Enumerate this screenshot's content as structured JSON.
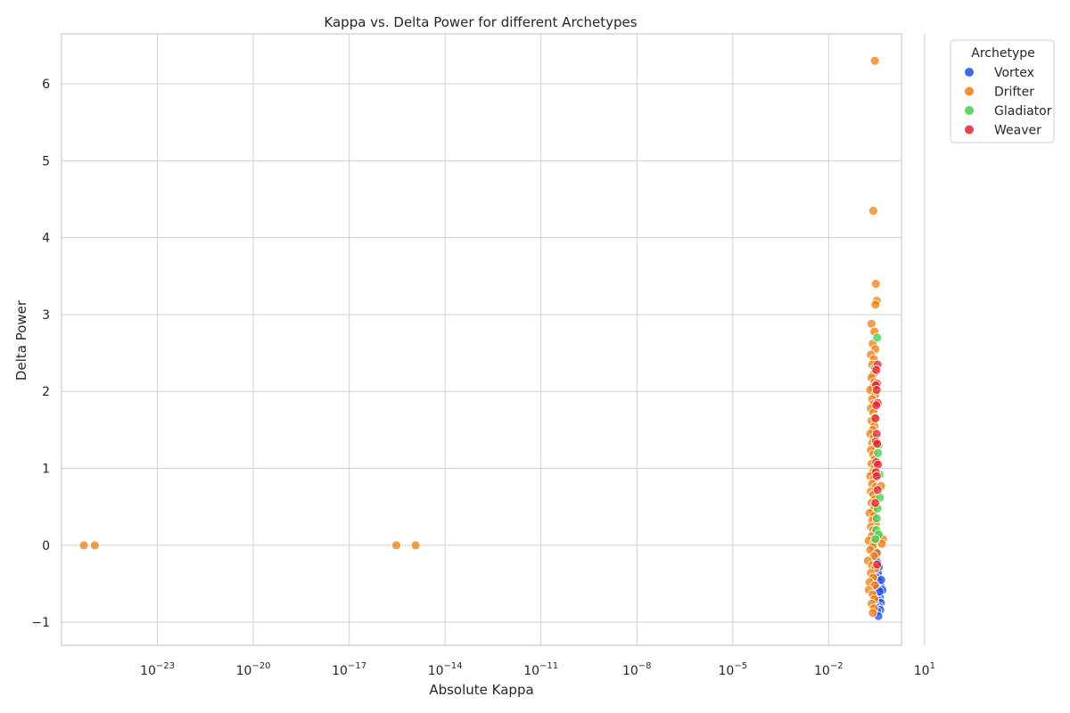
{
  "chart_data": {
    "type": "scatter",
    "title": "Kappa vs. Delta Power for different Archetypes",
    "xlabel": "Absolute Kappa",
    "ylabel": "Delta Power",
    "x_scale": "log",
    "xlim": [
      1e-26,
      1.9
    ],
    "ylim": [
      -1.3,
      6.65
    ],
    "x_ticks": [
      1e-23,
      1e-20,
      1e-17,
      1e-14,
      1e-11,
      1e-08,
      1e-05,
      0.01,
      10
    ],
    "x_tick_labels": [
      {
        "base": "10",
        "exp": "−23"
      },
      {
        "base": "10",
        "exp": "−20"
      },
      {
        "base": "10",
        "exp": "−17"
      },
      {
        "base": "10",
        "exp": "−14"
      },
      {
        "base": "10",
        "exp": "−11"
      },
      {
        "base": "10",
        "exp": "−8"
      },
      {
        "base": "10",
        "exp": "−5"
      },
      {
        "base": "10",
        "exp": "−2"
      },
      {
        "base": "10",
        "exp": "1"
      }
    ],
    "y_ticks": [
      -1,
      0,
      1,
      2,
      3,
      4,
      5,
      6
    ],
    "y_tick_labels": [
      "−1",
      "0",
      "1",
      "2",
      "3",
      "4",
      "5",
      "6"
    ],
    "grid": true,
    "legend_title": "Archetype",
    "legend_placement": "outside top-right",
    "series": [
      {
        "name": "Vortex",
        "color": "#1f4ee8",
        "points": [
          [
            0.24,
            0.0
          ],
          [
            0.27,
            -0.08
          ],
          [
            0.3,
            -0.15
          ],
          [
            0.33,
            -0.22
          ],
          [
            0.28,
            -0.3
          ],
          [
            0.35,
            -0.36
          ],
          [
            0.31,
            -0.42
          ],
          [
            0.38,
            -0.46
          ],
          [
            0.29,
            -0.5
          ],
          [
            0.42,
            -0.53
          ],
          [
            0.34,
            -0.56
          ],
          [
            0.45,
            -0.6
          ],
          [
            0.37,
            -0.62
          ],
          [
            0.48,
            -0.58
          ],
          [
            0.32,
            -0.65
          ],
          [
            0.4,
            -0.68
          ],
          [
            0.36,
            -0.72
          ],
          [
            0.43,
            -0.75
          ],
          [
            0.3,
            -0.78
          ],
          [
            0.38,
            -0.8
          ],
          [
            0.34,
            -0.82
          ],
          [
            0.41,
            -0.84
          ],
          [
            0.33,
            -0.86
          ],
          [
            0.36,
            -0.92
          ],
          [
            0.39,
            -0.6
          ],
          [
            0.44,
            -0.45
          ],
          [
            0.37,
            -0.28
          ],
          [
            0.33,
            -0.1
          ]
        ]
      },
      {
        "name": "Drifter",
        "color": "#f07d0e",
        "points": [
          [
            5e-26,
            0.0
          ],
          [
            1.1e-25,
            0.0
          ],
          [
            3e-16,
            0.0
          ],
          [
            1.2e-15,
            0.0
          ],
          [
            0.28,
            6.3
          ],
          [
            0.25,
            4.35
          ],
          [
            0.3,
            3.4
          ],
          [
            0.32,
            3.18
          ],
          [
            0.29,
            3.13
          ],
          [
            0.22,
            2.88
          ],
          [
            0.27,
            2.78
          ],
          [
            0.24,
            2.62
          ],
          [
            0.29,
            2.55
          ],
          [
            0.21,
            2.48
          ],
          [
            0.26,
            2.42
          ],
          [
            0.23,
            2.35
          ],
          [
            0.28,
            2.3
          ],
          [
            0.25,
            2.22
          ],
          [
            0.22,
            2.18
          ],
          [
            0.27,
            2.12
          ],
          [
            0.24,
            2.05
          ],
          [
            0.2,
            2.02
          ],
          [
            0.29,
            1.96
          ],
          [
            0.23,
            1.9
          ],
          [
            0.26,
            1.84
          ],
          [
            0.21,
            1.78
          ],
          [
            0.25,
            1.72
          ],
          [
            0.28,
            1.66
          ],
          [
            0.22,
            1.62
          ],
          [
            0.27,
            1.55
          ],
          [
            0.24,
            1.5
          ],
          [
            0.2,
            1.45
          ],
          [
            0.26,
            1.4
          ],
          [
            0.23,
            1.33
          ],
          [
            0.29,
            1.28
          ],
          [
            0.21,
            1.24
          ],
          [
            0.25,
            1.18
          ],
          [
            0.28,
            1.12
          ],
          [
            0.22,
            1.06
          ],
          [
            0.27,
            1.0
          ],
          [
            0.24,
            0.95
          ],
          [
            0.2,
            0.9
          ],
          [
            0.26,
            0.86
          ],
          [
            0.23,
            0.8
          ],
          [
            0.3,
            0.76
          ],
          [
            0.44,
            0.77
          ],
          [
            0.21,
            0.7
          ],
          [
            0.25,
            0.66
          ],
          [
            0.28,
            0.6
          ],
          [
            0.22,
            0.55
          ],
          [
            0.27,
            0.5
          ],
          [
            0.24,
            0.45
          ],
          [
            0.19,
            0.42
          ],
          [
            0.26,
            0.38
          ],
          [
            0.23,
            0.32
          ],
          [
            0.3,
            0.28
          ],
          [
            0.21,
            0.24
          ],
          [
            0.25,
            0.2
          ],
          [
            0.28,
            0.16
          ],
          [
            0.22,
            0.12
          ],
          [
            0.4,
            0.1
          ],
          [
            0.5,
            0.08
          ],
          [
            0.18,
            0.06
          ],
          [
            0.27,
            0.04
          ],
          [
            0.46,
            0.02
          ],
          [
            0.24,
            -0.02
          ],
          [
            0.2,
            -0.06
          ],
          [
            0.32,
            -0.1
          ],
          [
            0.26,
            -0.14
          ],
          [
            0.17,
            -0.2
          ],
          [
            0.23,
            -0.26
          ],
          [
            0.29,
            -0.3
          ],
          [
            0.21,
            -0.36
          ],
          [
            0.25,
            -0.42
          ],
          [
            0.19,
            -0.48
          ],
          [
            0.28,
            -0.52
          ],
          [
            0.18,
            -0.58
          ],
          [
            0.24,
            -0.64
          ],
          [
            0.27,
            -0.7
          ],
          [
            0.22,
            -0.76
          ],
          [
            0.26,
            -0.82
          ],
          [
            0.24,
            -0.88
          ]
        ]
      },
      {
        "name": "Gladiator",
        "color": "#3fcf4a",
        "points": [
          [
            0.33,
            2.7
          ],
          [
            0.36,
            1.3
          ],
          [
            0.35,
            1.2
          ],
          [
            0.39,
            0.92
          ],
          [
            0.31,
            0.2
          ],
          [
            0.37,
            0.14
          ],
          [
            0.29,
            0.08
          ],
          [
            0.34,
            0.48
          ],
          [
            0.4,
            0.62
          ],
          [
            0.32,
            0.35
          ]
        ]
      },
      {
        "name": "Weaver",
        "color": "#e0252c",
        "points": [
          [
            0.34,
            2.35
          ],
          [
            0.31,
            2.28
          ],
          [
            0.33,
            2.1
          ],
          [
            0.3,
            2.08
          ],
          [
            0.32,
            2.02
          ],
          [
            0.34,
            1.85
          ],
          [
            0.31,
            1.82
          ],
          [
            0.29,
            1.65
          ],
          [
            0.32,
            1.45
          ],
          [
            0.3,
            1.35
          ],
          [
            0.33,
            1.32
          ],
          [
            0.31,
            1.08
          ],
          [
            0.35,
            1.05
          ],
          [
            0.3,
            0.95
          ],
          [
            0.32,
            0.9
          ],
          [
            0.34,
            0.72
          ],
          [
            0.29,
            0.55
          ],
          [
            0.33,
            -0.25
          ]
        ]
      }
    ]
  }
}
